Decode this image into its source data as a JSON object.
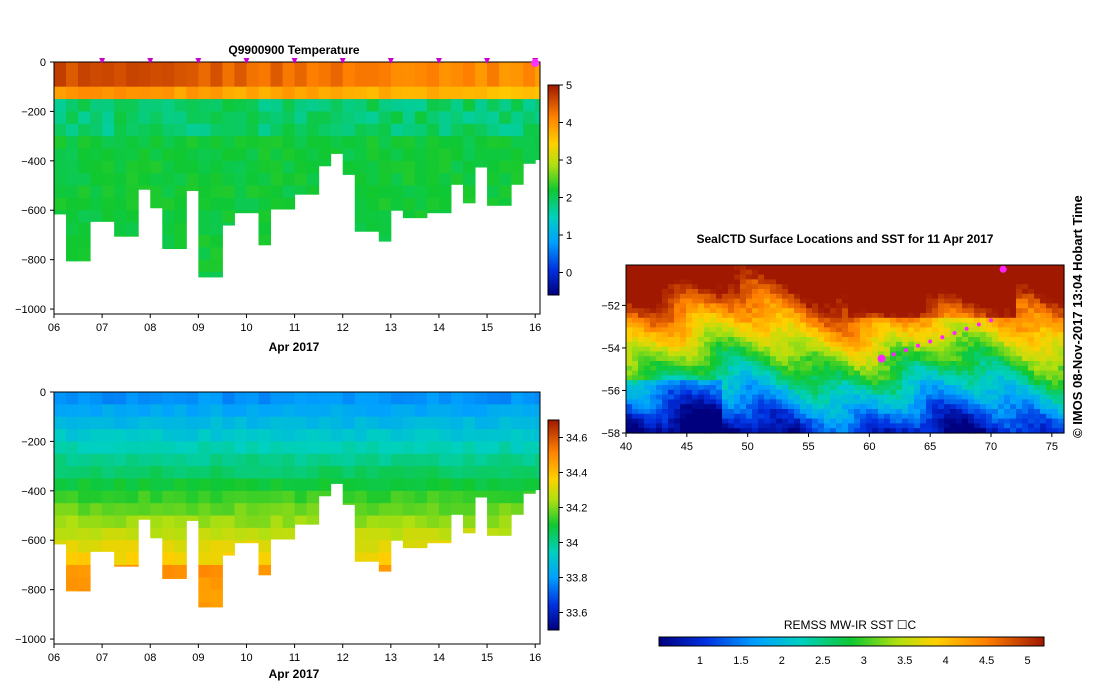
{
  "chart_data": [
    {
      "type": "heatmap",
      "title": "Q9900900  Temperature",
      "xlabel": "Apr 2017",
      "ylabel": "",
      "x_ticks": [
        "06",
        "07",
        "08",
        "09",
        "10",
        "11",
        "12",
        "13",
        "14",
        "15",
        "16"
      ],
      "y_ticks": [
        0,
        -200,
        -400,
        -600,
        -800,
        -1000
      ],
      "xlim": [
        6.0,
        16.1
      ],
      "ylim": [
        -1020,
        0
      ],
      "colorbar": {
        "min": -0.6,
        "max": 5,
        "ticks": [
          0,
          1,
          2,
          3,
          4,
          5
        ]
      },
      "profile_times": [
        6.0,
        6.25,
        6.5,
        6.75,
        7.0,
        7.25,
        7.5,
        7.75,
        8.0,
        8.25,
        8.5,
        8.75,
        9.0,
        9.25,
        9.5,
        9.75,
        10.0,
        10.25,
        10.5,
        10.75,
        11.0,
        11.25,
        11.5,
        11.75,
        12.0,
        12.25,
        12.5,
        12.75,
        13.0,
        13.25,
        13.5,
        13.75,
        14.0,
        14.25,
        14.5,
        14.75,
        15.0,
        15.25,
        15.5,
        15.75,
        16.0
      ],
      "profile_max_depth": [
        -615,
        -805,
        -805,
        -645,
        -645,
        -705,
        -705,
        -515,
        -590,
        -755,
        -755,
        -520,
        -870,
        -870,
        -660,
        -610,
        -610,
        -740,
        -595,
        -595,
        -535,
        -535,
        -420,
        -370,
        -455,
        -685,
        -685,
        -725,
        -600,
        -630,
        -630,
        -610,
        -610,
        -495,
        -570,
        -425,
        -580,
        -580,
        -495,
        -410,
        -395
      ],
      "marker_days": [
        7,
        8,
        9,
        10,
        11,
        12,
        13,
        14,
        15,
        16
      ]
    },
    {
      "type": "heatmap",
      "title": "",
      "xlabel": "Apr 2017",
      "ylabel": "",
      "x_ticks": [
        "06",
        "07",
        "08",
        "09",
        "10",
        "11",
        "12",
        "13",
        "14",
        "15",
        "16"
      ],
      "y_ticks": [
        0,
        -200,
        -400,
        -600,
        -800,
        -1000
      ],
      "xlim": [
        6.0,
        16.1
      ],
      "ylim": [
        -1020,
        0
      ],
      "colorbar": {
        "min": 33.5,
        "max": 34.7,
        "ticks": [
          33.6,
          33.8,
          34,
          34.2,
          34.4,
          34.6
        ]
      }
    },
    {
      "type": "heatmap",
      "title": "SealCTD Surface Locations and SST for 11 Apr 2017",
      "xlabel": "",
      "ylabel": "",
      "x_ticks": [
        40,
        45,
        50,
        55,
        60,
        65,
        70,
        75
      ],
      "y_ticks": [
        -52,
        -54,
        -56,
        -58
      ],
      "xlim": [
        40,
        76
      ],
      "ylim": [
        -58,
        -50.1
      ],
      "colorbar": {
        "label": "REMSS MW-IR SST ☐C",
        "min": 0.5,
        "max": 5.2,
        "ticks": [
          1,
          1.5,
          2,
          2.5,
          3,
          3.5,
          4,
          4.5,
          5
        ]
      },
      "track": {
        "lon": [
          61,
          62,
          63,
          64,
          65,
          66,
          67,
          68,
          69,
          70,
          71
        ],
        "lat": [
          -54.5,
          -54.3,
          -54.1,
          -53.9,
          -53.7,
          -53.5,
          -53.3,
          -53.1,
          -52.9,
          -52.7,
          -50.3
        ]
      }
    }
  ],
  "side_label": "©  IMOS 08-Nov-2017 13:04 Hobart Time"
}
